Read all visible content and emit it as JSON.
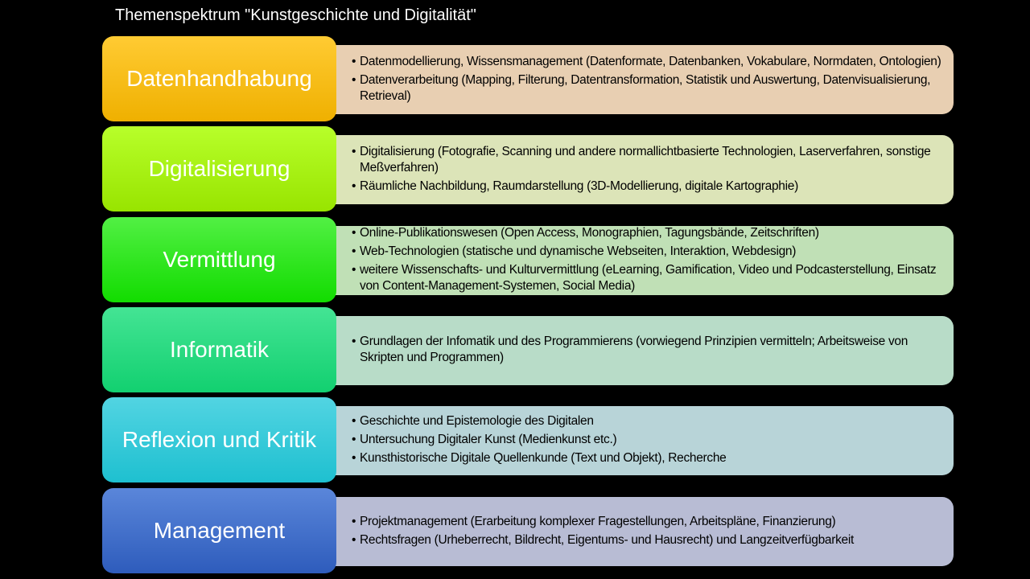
{
  "title": "Themenspektrum \"Kunstgeschichte und Digitalität\"",
  "categories": [
    {
      "label": "Datenhandhabung",
      "colors": [
        "#ffcb33",
        "#efb000"
      ],
      "bg": "#e8cfb2",
      "items": [
        "Datenmodellierung, Wissensmanagement (Datenformate, Datenbanken, Vokabulare, Normdaten, Ontologien)",
        "Datenverarbeitung (Mapping, Filterung, Datentransformation, Statistik und Auswertung, Datenvisualisierung, Retrieval)"
      ]
    },
    {
      "label": "Digitalisierung",
      "colors": [
        "#b8ff2a",
        "#98e400"
      ],
      "bg": "#dce4b8",
      "items": [
        "Digitalisierung (Fotografie, Scanning und andere normallichtbasierte Technologien, Laserverfahren, sonstige Meßverfahren)",
        "Räumliche Nachbildung, Raumdarstellung (3D-Modellierung, digitale Kartographie)"
      ]
    },
    {
      "label": "Vermittlung",
      "colors": [
        "#52f044",
        "#12dc00"
      ],
      "bg": "#c0e0b6",
      "items": [
        "Online-Publikationswesen (Open Access, Monographien, Tagungsbände, Zeitschriften)",
        "Web-Technologien (statische und dynamische Webseiten, Interaktion, Webdesign)",
        "weitere Wissenschafts- und Kulturvermittlung (eLearning, Gamification, Video und Podcasterstellung, Einsatz von Content-Management-Systemen, Social Media)"
      ]
    },
    {
      "label": "Informatik",
      "colors": [
        "#44e494",
        "#12d070"
      ],
      "bg": "#b8dcc8",
      "items": [
        "Grundlagen der Infomatik und des Programmierens (vorwiegend Prinzipien vermitteln; Arbeitsweise von Skripten und Programmen)"
      ]
    },
    {
      "label": "Reflexion und Kritik",
      "colors": [
        "#52d4e2",
        "#1ec0d0"
      ],
      "bg": "#b8d4d8",
      "items": [
        "Geschichte und Epistemologie des Digitalen",
        "Untersuchung Digitaler Kunst (Medienkunst etc.)",
        "Kunsthistorische Digitale Quellenkunde (Text und Objekt), Recherche"
      ]
    },
    {
      "label": "Management",
      "colors": [
        "#5a86da",
        "#2e5cbc"
      ],
      "bg": "#b8bcd4",
      "items": [
        "Projektmanagement (Erarbeitung komplexer Fragestellungen, Arbeitspläne, Finanzierung)",
        "Rechtsfragen (Urheberrecht, Bildrecht, Eigentums- und Hausrecht) und Langzeitverfügbarkeit"
      ]
    }
  ]
}
